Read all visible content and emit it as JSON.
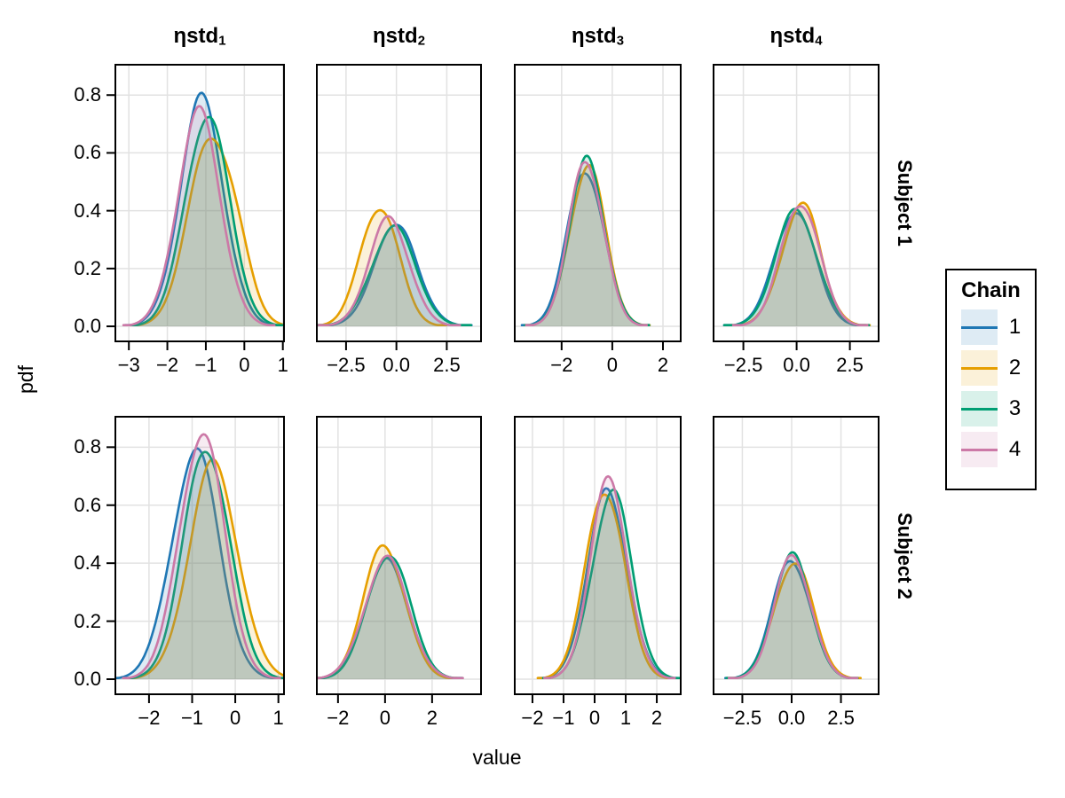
{
  "figure": {
    "xlabel": "value",
    "ylabel": "pdf",
    "background": "#ffffff",
    "grid_color": "#e2e2e2",
    "frame_color": "#000000"
  },
  "legend": {
    "title": "Chain",
    "entries": [
      {
        "label": "1",
        "color": "#1f77b4"
      },
      {
        "label": "2",
        "color": "#e69f00"
      },
      {
        "label": "3",
        "color": "#009e73"
      },
      {
        "label": "4",
        "color": "#cc79a7"
      }
    ]
  },
  "chart_data": {
    "type": "area",
    "subtype": "kde-density-facet-grid",
    "facet_rows": [
      "Subject 1",
      "Subject 2"
    ],
    "facet_cols": [
      {
        "base": "ηstd",
        "sub": "1"
      },
      {
        "base": "ηstd",
        "sub": "2"
      },
      {
        "base": "ηstd",
        "sub": "3"
      },
      {
        "base": "ηstd",
        "sub": "4"
      }
    ],
    "xlabel": "value",
    "ylabel": "pdf",
    "grid": true,
    "legend_position": "right",
    "ylim": [
      -0.052,
      0.905
    ],
    "yticks": {
      "values": [
        0.0,
        0.2,
        0.4,
        0.6,
        0.8
      ],
      "labels": [
        "0.0",
        "0.2",
        "0.4",
        "0.6",
        "0.8"
      ]
    },
    "panels": [
      {
        "row": 0,
        "col": 0,
        "xlim": [
          -3.35,
          1.03
        ],
        "xticks": {
          "values": [
            -3,
            -2,
            -1,
            0,
            1
          ],
          "labels": [
            "−3",
            "−2",
            "−1",
            "0",
            "1"
          ]
        },
        "curves": [
          {
            "chain": 1,
            "mean": -1.1,
            "sd": 0.57,
            "peak": 0.775
          },
          {
            "chain": 2,
            "mean": -0.85,
            "sd": 0.6,
            "peak": 0.655,
            "shoulder": {
              "mean": -0.15,
              "sd": 0.38,
              "peak": 0.07
            }
          },
          {
            "chain": 3,
            "mean": -0.97,
            "sd": 0.57,
            "peak": 0.74
          },
          {
            "chain": 4,
            "mean": -1.18,
            "sd": 0.56,
            "peak": 0.73
          }
        ]
      },
      {
        "row": 0,
        "col": 1,
        "xlim": [
          -3.95,
          4.2
        ],
        "xticks": {
          "values": [
            -2.5,
            0.0,
            2.5
          ],
          "labels": [
            "−2.5",
            "0.0",
            "2.5"
          ]
        },
        "curves": [
          {
            "chain": 1,
            "mean": -0.05,
            "sd": 1.08,
            "peak": 0.335,
            "shoulder": {
              "mean": 0.55,
              "sd": 0.45,
              "peak": 0.035
            }
          },
          {
            "chain": 2,
            "mean": -0.84,
            "sd": 0.95,
            "peak": 0.42
          },
          {
            "chain": 3,
            "mean": -0.15,
            "sd": 1.1,
            "peak": 0.34
          },
          {
            "chain": 4,
            "mean": -0.35,
            "sd": 1.0,
            "peak": 0.37
          }
        ]
      },
      {
        "row": 0,
        "col": 2,
        "xlim": [
          -3.85,
          2.7
        ],
        "xticks": {
          "values": [
            -2,
            0,
            2
          ],
          "labels": [
            "−2",
            "0",
            "2"
          ]
        },
        "curves": [
          {
            "chain": 1,
            "mean": -1.05,
            "sd": 0.72,
            "peak": 0.55
          },
          {
            "chain": 2,
            "mean": -0.98,
            "sd": 0.7,
            "peak": 0.56
          },
          {
            "chain": 3,
            "mean": -1.0,
            "sd": 0.7,
            "peak": 0.565
          },
          {
            "chain": 4,
            "mean": -1.02,
            "sd": 0.68,
            "peak": 0.578
          }
        ]
      },
      {
        "row": 0,
        "col": 3,
        "xlim": [
          -3.9,
          3.85
        ],
        "xticks": {
          "values": [
            -2.5,
            0.0,
            2.5
          ],
          "labels": [
            "−2.5",
            "0.0",
            "2.5"
          ]
        },
        "curves": [
          {
            "chain": 1,
            "mean": -0.08,
            "sd": 0.95,
            "peak": 0.405
          },
          {
            "chain": 2,
            "mean": 0.18,
            "sd": 0.93,
            "peak": 0.4,
            "shoulder": {
              "mean": 0.8,
              "sd": 0.4,
              "peak": 0.03
            }
          },
          {
            "chain": 3,
            "mean": 0.0,
            "sd": 0.97,
            "peak": 0.4
          },
          {
            "chain": 4,
            "mean": 0.17,
            "sd": 0.9,
            "peak": 0.435
          }
        ]
      },
      {
        "row": 1,
        "col": 0,
        "xlim": [
          -2.78,
          1.13
        ],
        "xticks": {
          "values": [
            -2,
            -1,
            0,
            1
          ],
          "labels": [
            "−2",
            "−1",
            "0",
            "1"
          ]
        },
        "curves": [
          {
            "chain": 1,
            "mean": -0.93,
            "sd": 0.55,
            "peak": 0.785
          },
          {
            "chain": 2,
            "mean": -0.5,
            "sd": 0.57,
            "peak": 0.73
          },
          {
            "chain": 3,
            "mean": -0.66,
            "sd": 0.53,
            "peak": 0.81
          },
          {
            "chain": 4,
            "mean": -0.78,
            "sd": 0.52,
            "peak": 0.855
          }
        ]
      },
      {
        "row": 1,
        "col": 1,
        "xlim": [
          -2.9,
          4.08
        ],
        "xticks": {
          "values": [
            -2,
            0,
            2
          ],
          "labels": [
            "−2",
            "0",
            "2"
          ]
        },
        "curves": [
          {
            "chain": 1,
            "mean": 0.05,
            "sd": 0.92,
            "peak": 0.4
          },
          {
            "chain": 2,
            "mean": -0.02,
            "sd": 0.88,
            "peak": 0.462
          },
          {
            "chain": 3,
            "mean": 0.15,
            "sd": 0.9,
            "peak": 0.44
          },
          {
            "chain": 4,
            "mean": 0.05,
            "sd": 0.93,
            "peak": 0.412
          }
        ]
      },
      {
        "row": 1,
        "col": 2,
        "xlim": [
          -2.57,
          2.77
        ],
        "xticks": {
          "values": [
            -2,
            -1,
            0,
            1,
            2
          ],
          "labels": [
            "−2",
            "−1",
            "0",
            "1",
            "2"
          ]
        },
        "curves": [
          {
            "chain": 1,
            "mean": 0.42,
            "sd": 0.64,
            "peak": 0.64
          },
          {
            "chain": 2,
            "mean": 0.34,
            "sd": 0.62,
            "peak": 0.665
          },
          {
            "chain": 3,
            "mean": 0.55,
            "sd": 0.63,
            "peak": 0.65
          },
          {
            "chain": 4,
            "mean": 0.48,
            "sd": 0.6,
            "peak": 0.658,
            "shoulder": {
              "mean": 0.0,
              "sd": 0.3,
              "peak": 0.04
            }
          }
        ]
      },
      {
        "row": 1,
        "col": 3,
        "xlim": [
          -3.96,
          4.41
        ],
        "xticks": {
          "values": [
            -2.5,
            0.0,
            2.5
          ],
          "labels": [
            "−2.5",
            "0.0",
            "2.5"
          ]
        },
        "curves": [
          {
            "chain": 1,
            "mean": 0.0,
            "sd": 0.96,
            "peak": 0.415
          },
          {
            "chain": 2,
            "mean": 0.1,
            "sd": 0.97,
            "peak": 0.41
          },
          {
            "chain": 3,
            "mean": 0.02,
            "sd": 0.95,
            "peak": 0.42
          },
          {
            "chain": 4,
            "mean": 0.07,
            "sd": 0.93,
            "peak": 0.425
          }
        ]
      }
    ]
  }
}
